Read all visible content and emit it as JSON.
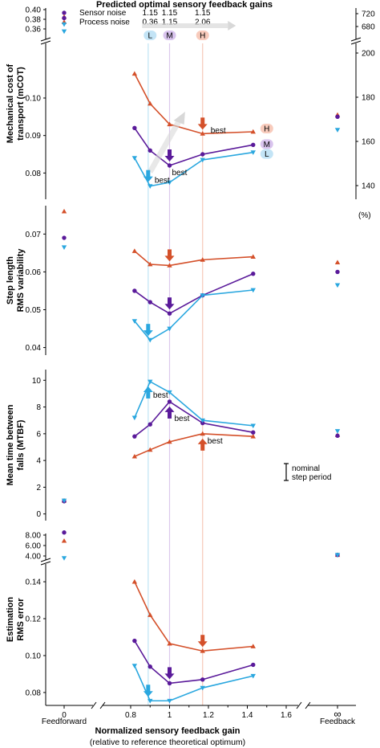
{
  "colors": {
    "low": "#2aa7df",
    "medium": "#5a1a9a",
    "high": "#d4502a",
    "axis": "#000000",
    "refline_low": "#bfe3f4",
    "refline_med": "#dcc8ec",
    "refline_high": "#f6c8b8"
  },
  "header": {
    "title": "Predicted optimal sensory feedback gains",
    "rows": [
      {
        "label": "Sensor noise",
        "values": [
          "1.15",
          "1.15",
          "1.15"
        ],
        "marker": "circle",
        "color": "#5a1a9a"
      },
      {
        "label": "Process noise",
        "values": [
          "0.36",
          "1.15",
          "2.06"
        ],
        "marker": "triangle-up",
        "color": "#d4502a"
      },
      {
        "label": "",
        "values": [
          "",
          "",
          ""
        ],
        "marker": "triangle-down",
        "color": "#2aa7df"
      }
    ],
    "pills": [
      "L",
      "M",
      "H"
    ]
  },
  "xaxis": {
    "label": "Normalized sensory feedback gain",
    "sublabel": "(relative to reference theoretical optimum)",
    "ticks": [
      "0",
      "0.8",
      "1",
      "1.2",
      "1.4",
      "1.6",
      "∞"
    ],
    "tick_values": [
      0,
      0.8,
      1.0,
      1.2,
      1.4,
      1.6,
      null
    ],
    "end_labels": [
      "Feedforward",
      "Feedback"
    ],
    "ref_lines": [
      0.89,
      1.0,
      1.17
    ]
  },
  "chart_data": [
    {
      "type": "line",
      "title": "",
      "ylabel": "Mechanical cost of transport (mCOT)",
      "ylim": [
        0.073,
        0.112
      ],
      "yticks": [
        "0.08",
        "0.09",
        "0.10"
      ],
      "ytick_values": [
        0.08,
        0.09,
        0.1
      ],
      "broken_ticks": [
        "0.40",
        "0.38",
        "0.36"
      ],
      "right_axis": {
        "ticks": [
          "140",
          "160",
          "180",
          "200"
        ],
        "tick_values": [
          140,
          160,
          180,
          200
        ],
        "broken_ticks": [
          "720",
          "680"
        ],
        "unit": "(%)"
      },
      "x": [
        0.82,
        0.9,
        1.0,
        1.17,
        1.43
      ],
      "series": [
        {
          "name": "H",
          "color": "#d4502a",
          "marker": "triangle-up",
          "values": [
            0.1065,
            0.0985,
            0.093,
            0.0905,
            0.091
          ],
          "feedforward": 0.385,
          "feedback": 0.0955
        },
        {
          "name": "M",
          "color": "#5a1a9a",
          "marker": "circle",
          "values": [
            0.092,
            0.086,
            0.082,
            0.085,
            0.0875
          ],
          "feedforward": 0.3825,
          "feedback": 0.095
        },
        {
          "name": "L",
          "color": "#2aa7df",
          "marker": "triangle-down",
          "values": [
            0.084,
            0.0765,
            0.0775,
            0.0835,
            0.0855
          ],
          "feedforward": 0.3695,
          "feedback": 0.0915
        }
      ],
      "annotations": [
        {
          "text": "best",
          "series": "H"
        },
        {
          "text": "best",
          "series": "M"
        },
        {
          "text": "best",
          "series": "L"
        }
      ]
    },
    {
      "type": "line",
      "title": "",
      "ylabel": "Step length RMS variability",
      "ylim": [
        0.038,
        0.0775
      ],
      "yticks": [
        "0.04",
        "0.05",
        "0.06",
        "0.07"
      ],
      "ytick_values": [
        0.04,
        0.05,
        0.06,
        0.07
      ],
      "x": [
        0.82,
        0.9,
        1.0,
        1.17,
        1.43
      ],
      "series": [
        {
          "name": "H",
          "color": "#d4502a",
          "marker": "triangle-up",
          "values": [
            0.0655,
            0.062,
            0.0617,
            0.0632,
            0.064
          ],
          "feedforward": 0.076,
          "feedback": 0.0625
        },
        {
          "name": "M",
          "color": "#5a1a9a",
          "marker": "circle",
          "values": [
            0.055,
            0.052,
            0.049,
            0.0538,
            0.0595
          ],
          "feedforward": 0.069,
          "feedback": 0.06
        },
        {
          "name": "L",
          "color": "#2aa7df",
          "marker": "triangle-down",
          "values": [
            0.047,
            0.042,
            0.045,
            0.0538,
            0.0552
          ],
          "feedforward": 0.0665,
          "feedback": 0.0565
        }
      ]
    },
    {
      "type": "line",
      "title": "",
      "ylabel": "Mean time between falls (MTBF)",
      "ylim": [
        -0.5,
        10.8
      ],
      "yticks": [
        "0",
        "2",
        "4",
        "6",
        "8",
        "10"
      ],
      "ytick_values": [
        0,
        2,
        4,
        6,
        8,
        10
      ],
      "x": [
        0.82,
        0.9,
        1.0,
        1.17,
        1.43
      ],
      "series": [
        {
          "name": "H",
          "color": "#d4502a",
          "marker": "triangle-up",
          "values": [
            4.3,
            4.8,
            5.4,
            6.0,
            5.8
          ],
          "feedforward": 1.0,
          "feedback": 5.9
        },
        {
          "name": "M",
          "color": "#5a1a9a",
          "marker": "circle",
          "values": [
            5.8,
            6.7,
            8.4,
            6.8,
            6.1
          ],
          "feedforward": 0.95,
          "feedback": 5.85
        },
        {
          "name": "L",
          "color": "#2aa7df",
          "marker": "triangle-down",
          "values": [
            7.2,
            9.9,
            9.1,
            7.0,
            6.6
          ],
          "feedforward": 1.0,
          "feedback": 6.2
        }
      ],
      "annotations": [
        {
          "text": "best",
          "series": "L"
        },
        {
          "text": "best",
          "series": "M"
        },
        {
          "text": "best",
          "series": "H"
        }
      ],
      "note": [
        "nominal",
        "step period"
      ]
    },
    {
      "type": "line",
      "title": "",
      "ylabel": "Estimation RMS error",
      "ylim": [
        0.073,
        0.147
      ],
      "yticks": [
        "0.08",
        "0.10",
        "0.12",
        "0.14"
      ],
      "ytick_values": [
        0.08,
        0.1,
        0.12,
        0.14
      ],
      "broken_ticks": [
        "8.00",
        "6.00",
        "4.00"
      ],
      "x": [
        0.82,
        0.9,
        1.0,
        1.17,
        1.43
      ],
      "series": [
        {
          "name": "H",
          "color": "#d4502a",
          "marker": "triangle-up",
          "values": [
            0.14,
            0.122,
            0.1065,
            0.1025,
            0.105
          ],
          "feedforward": 6.9,
          "feedback": 4.2
        },
        {
          "name": "M",
          "color": "#5a1a9a",
          "marker": "circle",
          "values": [
            0.108,
            0.094,
            0.085,
            0.087,
            0.095
          ],
          "feedforward": 8.5,
          "feedback": 4.2
        },
        {
          "name": "L",
          "color": "#2aa7df",
          "marker": "triangle-down",
          "values": [
            0.0945,
            0.0755,
            0.0755,
            0.0825,
            0.089
          ],
          "feedforward": 3.6,
          "feedback": 4.2
        }
      ]
    }
  ]
}
